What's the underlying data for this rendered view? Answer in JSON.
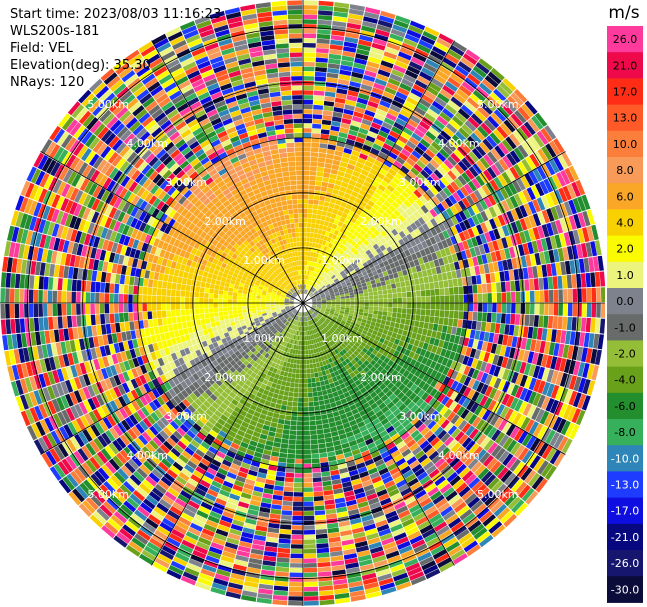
{
  "header": {
    "start_time": "Start time: 2023/08/03 11:16:23",
    "instrument": "WLS200s-181",
    "field": "Field: VEL",
    "elevation": "Elevation(deg): 35.30",
    "nrays": "NRays: 120"
  },
  "chart_data": {
    "type": "heatmap",
    "projection": "polar-ppi",
    "field": "VEL",
    "units": "m/s",
    "n_rays": 120,
    "max_range_km": 5.5,
    "range_ring_labels_km": [
      "1.00km",
      "2.00km",
      "3.00km",
      "4.00km",
      "5.00km"
    ],
    "colorbar": {
      "title": "m/s",
      "ticks": [
        "26.0",
        "21.0",
        "17.0",
        "13.0",
        "10.0",
        "8.0",
        "6.0",
        "4.0",
        "2.0",
        "1.0",
        "0.0",
        "-1.0",
        "-2.0",
        "-4.0",
        "-6.0",
        "-8.0",
        "-10.0",
        "-13.0",
        "-17.0",
        "-21.0",
        "-26.0",
        "-30.0"
      ],
      "colors": [
        "#ff3a9d",
        "#ee0a4a",
        "#ff2d16",
        "#ff5a28",
        "#fb7e3a",
        "#f99b58",
        "#faa626",
        "#f9d000",
        "#fbfb00",
        "#ecf47e",
        "#7d828c",
        "#676c6a",
        "#95be38",
        "#69a21a",
        "#238e2d",
        "#36b05a",
        "#2e86b8",
        "#1e3cff",
        "#0e0ee1",
        "#070780",
        "#16166e",
        "#0c0c3a"
      ]
    },
    "pattern": {
      "inner_radius_km": 0.3,
      "clean_range_km": 2.7,
      "toward_bearing_deg": 150,
      "away_bearing_deg": 330,
      "noise_beyond_km": 3.0
    }
  }
}
